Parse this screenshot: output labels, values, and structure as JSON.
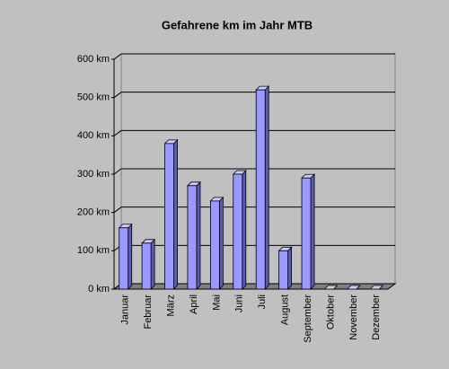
{
  "chart_data": {
    "type": "bar3d",
    "title": "Gefahrene km im Jahr MTB",
    "categories": [
      "Januar",
      "Februar",
      "März",
      "April",
      "Mai",
      "Juni",
      "Juli",
      "August",
      "September",
      "Oktober",
      "November",
      "Dezember"
    ],
    "values": [
      160,
      120,
      380,
      270,
      230,
      300,
      520,
      100,
      290,
      0,
      0,
      0
    ],
    "color": "#9999ff",
    "ylim": [
      0,
      600
    ],
    "yticks": [
      {
        "value": 0,
        "label": "0 km"
      },
      {
        "value": 100,
        "label": "100 km"
      },
      {
        "value": 200,
        "label": "200 km"
      },
      {
        "value": 300,
        "label": "300 km"
      },
      {
        "value": 400,
        "label": "400 km"
      },
      {
        "value": 500,
        "label": "500 km"
      },
      {
        "value": 600,
        "label": "600 km"
      }
    ],
    "grid": true
  }
}
